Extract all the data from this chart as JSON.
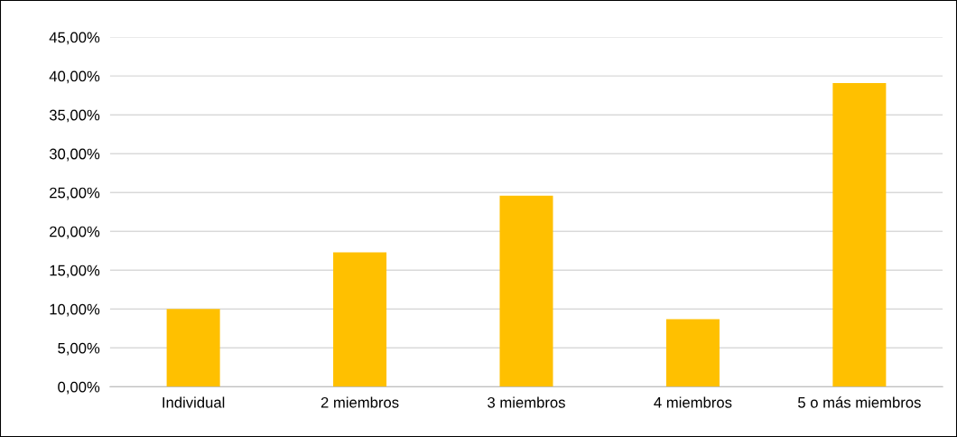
{
  "chart_data": {
    "type": "bar",
    "categories": [
      "Individual",
      "2 miembros",
      "3 miembros",
      "4 miembros",
      "5 o más miembros"
    ],
    "values": [
      10.0,
      17.3,
      24.6,
      8.7,
      39.1
    ],
    "color": "#ffc000",
    "ylim": [
      0,
      45
    ],
    "yticks": [
      {
        "value": 0,
        "label": "0,00%"
      },
      {
        "value": 5,
        "label": "5,00%"
      },
      {
        "value": 10,
        "label": "10,00%"
      },
      {
        "value": 15,
        "label": "15,00%"
      },
      {
        "value": 20,
        "label": "20,00%"
      },
      {
        "value": 25,
        "label": "25,00%"
      },
      {
        "value": 30,
        "label": "30,00%"
      },
      {
        "value": 35,
        "label": "35,00%"
      },
      {
        "value": 40,
        "label": "40,00%"
      },
      {
        "value": 45,
        "label": "45,00%"
      }
    ],
    "grid": "y"
  }
}
